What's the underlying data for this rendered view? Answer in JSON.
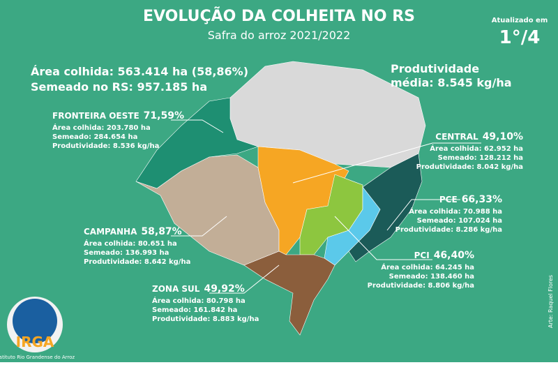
{
  "header": {
    "title": "EVOLUÇÃO DA COLHEITA NO RS",
    "subtitle": "Safra do arroz 2021/2022"
  },
  "update": {
    "label": "Atualizado em",
    "value": "1°/4"
  },
  "summary": {
    "harvested": "Área colhida: 563.414 ha (58,86%)",
    "seeded": "Semeado no RS: 957.185 ha",
    "productivity": [
      "Produtividade",
      "média: 8.545 kg/ha"
    ]
  },
  "regions": [
    {
      "name": "FRONTEIRA OESTE",
      "percent": "71,59%",
      "lines": [
        "Área colhida: 203.780 ha",
        "Semeado: 284.654 ha",
        "Produtividade: 8.536 kg/ha"
      ]
    },
    {
      "name": "CENTRAL",
      "percent": "49,10%",
      "lines": [
        "Área colhida: 62.952 ha",
        "Semeado: 128.212 ha",
        "Produtividade: 8.042 kg/ha"
      ]
    },
    {
      "name": "PCE",
      "percent": "66,33%",
      "lines": [
        "Área colhida: 70.988 ha",
        "Semeado: 107.024 ha",
        "Produtividade: 8.286 kg/ha"
      ]
    },
    {
      "name": "CAMPANHA",
      "percent": "58,87%",
      "lines": [
        "Área colhida: 80.651 ha",
        "Semeado: 136.993 ha",
        "Produtividade: 8.642 kg/ha"
      ]
    },
    {
      "name": "PCI",
      "percent": "46,40%",
      "lines": [
        "Área colhida: 64.245 ha",
        "Semeado: 138.460 ha",
        "Produtividade: 8.806 kg/ha"
      ]
    },
    {
      "name": "ZONA SUL",
      "percent": "49,92%",
      "lines": [
        "Área colhida: 80.798 ha",
        "Semeado: 161.842 ha",
        "Produtividade: 8.883 kg/ha"
      ]
    }
  ],
  "logo": {
    "name": "IRGA",
    "subtitle": "Instituto Rio Grandense do Arroz"
  },
  "credit": "Arte: Raquel Flores"
}
